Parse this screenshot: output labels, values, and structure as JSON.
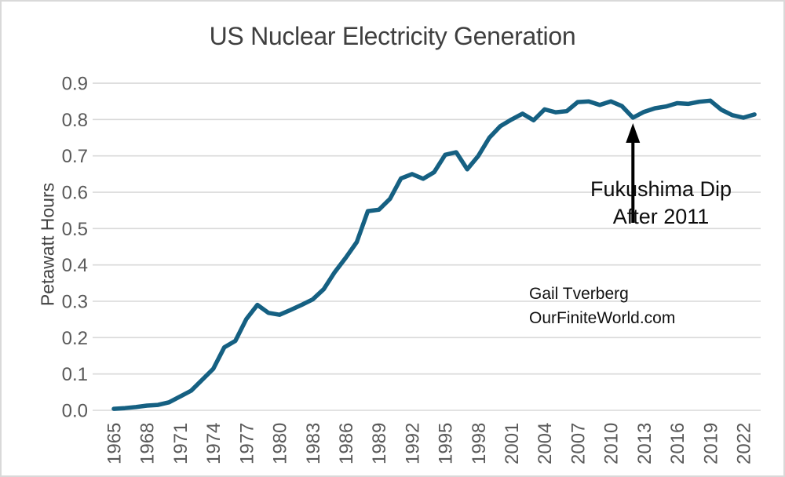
{
  "page": {
    "background": "#ffffff",
    "border_color": "#d9d9d9"
  },
  "chart_data": {
    "type": "line",
    "title": "US Nuclear Electricity Generation",
    "ylabel": "Petawatt Hours",
    "xlabel": "",
    "x": [
      1965,
      1966,
      1967,
      1968,
      1969,
      1970,
      1971,
      1972,
      1973,
      1974,
      1975,
      1976,
      1977,
      1978,
      1979,
      1980,
      1981,
      1982,
      1983,
      1984,
      1985,
      1986,
      1987,
      1988,
      1989,
      1990,
      1991,
      1992,
      1993,
      1994,
      1995,
      1996,
      1997,
      1998,
      1999,
      2000,
      2001,
      2002,
      2003,
      2004,
      2005,
      2006,
      2007,
      2008,
      2009,
      2010,
      2011,
      2012,
      2013,
      2014,
      2015,
      2016,
      2017,
      2018,
      2019,
      2020,
      2021,
      2022,
      2023
    ],
    "series": [
      {
        "name": "US nuclear electricity generation (petawatt hours)",
        "values": [
          0.004,
          0.006,
          0.009,
          0.013,
          0.015,
          0.022,
          0.038,
          0.054,
          0.084,
          0.114,
          0.173,
          0.191,
          0.251,
          0.29,
          0.268,
          0.263,
          0.276,
          0.29,
          0.305,
          0.333,
          0.38,
          0.42,
          0.463,
          0.548,
          0.552,
          0.582,
          0.638,
          0.65,
          0.637,
          0.655,
          0.703,
          0.71,
          0.663,
          0.7,
          0.75,
          0.782,
          0.8,
          0.816,
          0.798,
          0.828,
          0.82,
          0.823,
          0.848,
          0.85,
          0.84,
          0.85,
          0.837,
          0.805,
          0.821,
          0.831,
          0.836,
          0.845,
          0.843,
          0.849,
          0.852,
          0.827,
          0.812,
          0.805,
          0.814
        ]
      }
    ],
    "xticks": [
      1965,
      1968,
      1971,
      1974,
      1977,
      1980,
      1983,
      1986,
      1989,
      1992,
      1995,
      1998,
      2001,
      2004,
      2007,
      2010,
      2013,
      2016,
      2019,
      2022
    ],
    "ytick_labels": [
      "0.0",
      "0.1",
      "0.2",
      "0.3",
      "0.4",
      "0.5",
      "0.6",
      "0.7",
      "0.8",
      "0.9"
    ],
    "ylim": [
      0.0,
      0.9
    ],
    "xlim": [
      1965,
      2023
    ],
    "grid": "horizontal",
    "legend": "none",
    "line_color": "#156082",
    "gridline_color": "#d9d9d9",
    "tick_label_color": "#595959",
    "title_color": "#3f3f3f"
  },
  "annotation": {
    "line1": "Fukushima Dip",
    "line2": "After 2011",
    "arrow_target_year": 2012,
    "arrow_color": "#000000"
  },
  "credit": {
    "line1": "Gail Tverberg",
    "line2": "OurFiniteWorld.com"
  }
}
